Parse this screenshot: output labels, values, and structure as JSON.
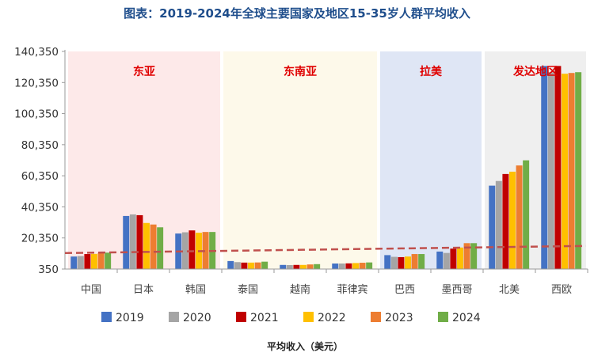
{
  "chart_data": {
    "type": "bar",
    "title": "图表：2019-2024年全球主要国家及地区15-35岁人群平均收入",
    "xlabel": "平均收入（美元）",
    "ylabel": "",
    "y_tick_labels": [
      "350",
      "20,350",
      "40,350",
      "60,350",
      "80,350",
      "100,350",
      "120,350",
      "140,350"
    ],
    "ylim": [
      350,
      140350
    ],
    "grid": false,
    "legend_position": "bottom",
    "categories": [
      "中国",
      "日本",
      "韩国",
      "泰国",
      "越南",
      "菲律宾",
      "巴西",
      "墨西哥",
      "北美",
      "西欧"
    ],
    "regions": [
      {
        "label": "东亚",
        "from": 0,
        "to": 2,
        "color": "#fde9e9"
      },
      {
        "label": "东南亚",
        "from": 3,
        "to": 5,
        "color": "#fdf9ea"
      },
      {
        "label": "拉美",
        "from": 6,
        "to": 7,
        "color": "#dfe6f5"
      },
      {
        "label": "发达地区",
        "from": 8,
        "to": 9,
        "color": "#efefef"
      }
    ],
    "reference_line": 13700,
    "series": [
      {
        "name": "2019",
        "color": "#4472c4",
        "values": [
          8400,
          34500,
          23200,
          5500,
          3000,
          3900,
          9300,
          11600,
          54000,
          131000
        ]
      },
      {
        "name": "2020",
        "color": "#a5a5a5",
        "values": [
          8700,
          35500,
          24000,
          4800,
          2900,
          3900,
          8200,
          10700,
          57000,
          127000
        ]
      },
      {
        "name": "2021",
        "color": "#c00000",
        "values": [
          10000,
          35000,
          25200,
          4500,
          3000,
          4000,
          8000,
          13500,
          61500,
          131000
        ]
      },
      {
        "name": "2022",
        "color": "#ffc000",
        "values": [
          10100,
          30000,
          23700,
          4500,
          3000,
          4200,
          8400,
          14200,
          63000,
          126000
        ]
      },
      {
        "name": "2023",
        "color": "#ed7d31",
        "values": [
          10700,
          29000,
          24200,
          4600,
          3300,
          4400,
          10000,
          17000,
          67000,
          126500
        ]
      },
      {
        "name": "2024",
        "color": "#70ad47",
        "values": [
          10900,
          27200,
          24200,
          5100,
          3500,
          4600,
          10000,
          17000,
          70300,
          127000
        ]
      }
    ]
  }
}
